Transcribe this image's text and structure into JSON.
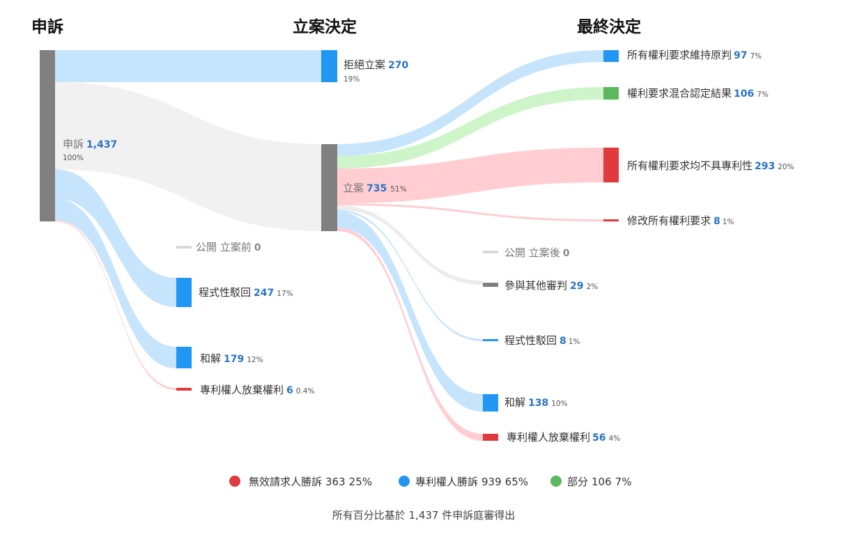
{
  "columns": {
    "c1": "申訴",
    "c2": "立案決定",
    "c3": "最終決定"
  },
  "colors": {
    "gray": "#808080",
    "blue": "#2196f3",
    "green": "#5cb85c",
    "red": "#e0393e",
    "light_gray": "#d9d9d9",
    "band_blue": "#c6e4fb",
    "band_gray": "#ececec",
    "band_green": "#cdf5c9",
    "band_red": "#ffcdd2",
    "value_text": "#2a73c4"
  },
  "nodes": {
    "appeal": {
      "label": "申訴",
      "value": "1,437",
      "pct": "100%"
    },
    "reject": {
      "label": "拒絕立案",
      "value": "270",
      "pct": "19%"
    },
    "instituted": {
      "label": "立案",
      "value": "735",
      "pct": "51%"
    },
    "pub_before": {
      "label": "公開 立案前",
      "value": "0",
      "pct": ""
    },
    "proc_dismiss1": {
      "label": "程式性駁回",
      "value": "247",
      "pct": "17%"
    },
    "settle1": {
      "label": "和解",
      "value": "179",
      "pct": "12%"
    },
    "abandon1": {
      "label": "專利權人放棄權利",
      "value": "6",
      "pct": "0.4%"
    },
    "all_upheld": {
      "label": "所有權利要求維持原判",
      "value": "97",
      "pct": "7%"
    },
    "mixed": {
      "label": "權利要求混合認定結果",
      "value": "106",
      "pct": "7%"
    },
    "all_unpat": {
      "label": "所有權利要求均不具專利性",
      "value": "293",
      "pct": "20%"
    },
    "amend_all": {
      "label": "修改所有權利要求",
      "value": "8",
      "pct": "1%"
    },
    "pub_after": {
      "label": "公開 立案後",
      "value": "0",
      "pct": ""
    },
    "joined": {
      "label": "參與其他審判",
      "value": "29",
      "pct": "2%"
    },
    "proc_dismiss2": {
      "label": "程式性駁回",
      "value": "8",
      "pct": "1%"
    },
    "settle2": {
      "label": "和解",
      "value": "138",
      "pct": "10%"
    },
    "abandon2": {
      "label": "專利權人放棄權利",
      "value": "56",
      "pct": "4%"
    }
  },
  "legend": [
    {
      "label": "無效請求人勝訴",
      "value": "363",
      "pct": "25%",
      "color": "#e0393e"
    },
    {
      "label": "專利權人勝訴",
      "value": "939",
      "pct": "65%",
      "color": "#2196f3"
    },
    {
      "label": "部分",
      "value": "106",
      "pct": "7%",
      "color": "#5cb85c"
    }
  ],
  "footnote": "所有百分比基於 1,437 件申訴庭審得出"
}
